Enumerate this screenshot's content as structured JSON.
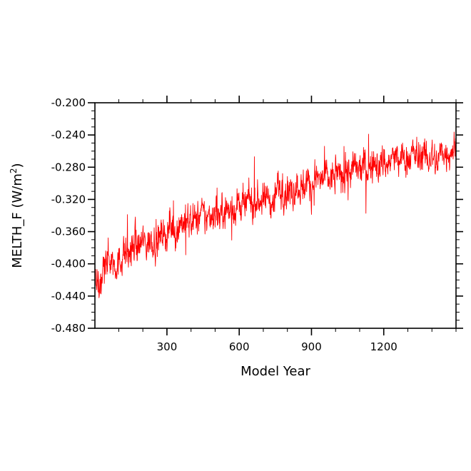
{
  "chart_data": {
    "type": "line",
    "title": "",
    "xlabel": "Model Year",
    "ylabel": "MELTH_F (W/m",
    "ylabel_sup": "2",
    "ylabel_close": ")",
    "xlim": [
      1,
      1500
    ],
    "ylim": [
      -0.48,
      -0.2
    ],
    "xticks": [
      300,
      600,
      900,
      1200
    ],
    "xtick_labels": [
      "300",
      "600",
      "900",
      "1200"
    ],
    "yticks": [
      -0.48,
      -0.44,
      -0.4,
      -0.36,
      -0.32,
      -0.28,
      -0.24,
      -0.2
    ],
    "ytick_labels": [
      "-0.480",
      "-0.440",
      "-0.400",
      "-0.360",
      "-0.320",
      "-0.280",
      "-0.240",
      "-0.200"
    ],
    "grid": false,
    "series": [
      {
        "color": "#ff0000",
        "x": [
          1,
          20,
          40,
          60,
          80,
          100,
          120,
          140,
          160,
          180,
          200,
          220,
          240,
          260,
          280,
          300,
          320,
          340,
          360,
          380,
          400,
          420,
          440,
          460,
          480,
          500,
          520,
          540,
          560,
          580,
          600,
          620,
          640,
          660,
          680,
          700,
          720,
          740,
          760,
          780,
          800,
          820,
          840,
          860,
          880,
          900,
          920,
          940,
          960,
          980,
          1000,
          1020,
          1040,
          1060,
          1080,
          1100,
          1120,
          1140,
          1160,
          1180,
          1200,
          1220,
          1240,
          1260,
          1280,
          1300,
          1320,
          1340,
          1360,
          1380,
          1400,
          1420,
          1440,
          1460,
          1480,
          1500
        ],
        "values": [
          -0.412,
          -0.425,
          -0.405,
          -0.392,
          -0.398,
          -0.401,
          -0.384,
          -0.389,
          -0.376,
          -0.381,
          -0.371,
          -0.378,
          -0.366,
          -0.372,
          -0.361,
          -0.364,
          -0.352,
          -0.359,
          -0.347,
          -0.351,
          -0.343,
          -0.348,
          -0.337,
          -0.344,
          -0.339,
          -0.333,
          -0.34,
          -0.329,
          -0.336,
          -0.331,
          -0.326,
          -0.332,
          -0.321,
          -0.328,
          -0.318,
          -0.324,
          -0.315,
          -0.327,
          -0.303,
          -0.311,
          -0.306,
          -0.312,
          -0.301,
          -0.307,
          -0.298,
          -0.304,
          -0.293,
          -0.299,
          -0.291,
          -0.297,
          -0.286,
          -0.293,
          -0.283,
          -0.289,
          -0.281,
          -0.286,
          -0.277,
          -0.284,
          -0.274,
          -0.281,
          -0.271,
          -0.278,
          -0.266,
          -0.274,
          -0.268,
          -0.271,
          -0.262,
          -0.269,
          -0.264,
          -0.271,
          -0.266,
          -0.276,
          -0.259,
          -0.264,
          -0.257,
          -0.255
        ]
      }
    ]
  }
}
